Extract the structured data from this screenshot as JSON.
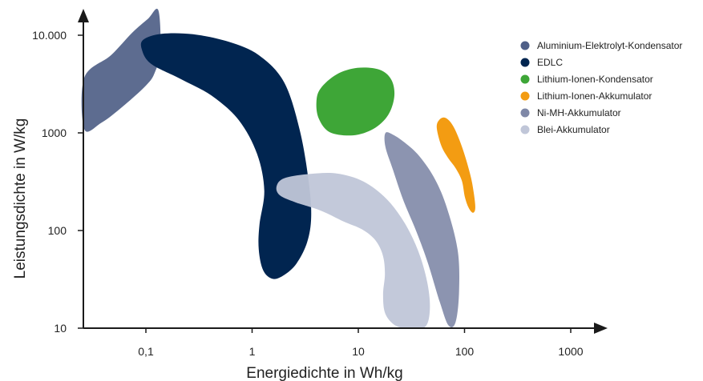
{
  "chart_data": {
    "type": "area",
    "x_scale": "log",
    "y_scale": "log",
    "xlabel": "Energiedichte in Wh/kg",
    "ylabel": "Leistungsdichte in W/kg",
    "x_ticks": [
      {
        "value": 0.1,
        "label": "0,1"
      },
      {
        "value": 1,
        "label": "1"
      },
      {
        "value": 10,
        "label": "10"
      },
      {
        "value": 100,
        "label": "100"
      },
      {
        "value": 1000,
        "label": "1000"
      }
    ],
    "y_ticks": [
      {
        "value": 10,
        "label": "10"
      },
      {
        "value": 100,
        "label": "100"
      },
      {
        "value": 1000,
        "label": "1000"
      },
      {
        "value": 10000,
        "label": "10.000"
      }
    ],
    "grid": false,
    "legend_position": "top-right",
    "series": [
      {
        "name": "Aluminium-Elektrolyt-Kondensator",
        "color": "#4f5f87",
        "opacity": 0.92,
        "region": [
          [
            0.0263,
            3677
          ],
          [
            0.047,
            6245
          ],
          [
            0.0743,
            10606
          ],
          [
            0.1046,
            14733
          ],
          [
            0.1309,
            18013
          ],
          [
            0.1368,
            6952
          ],
          [
            0.1211,
            4124
          ],
          [
            0.1003,
            3060
          ],
          [
            0.0609,
            1874
          ],
          [
            0.0382,
            1272
          ],
          [
            0.0263,
            1094
          ]
        ]
      },
      {
        "name": "EDLC",
        "color": "#012550",
        "opacity": 1,
        "region": [
          [
            0.0953,
            9046
          ],
          [
            0.1409,
            10355
          ],
          [
            0.2779,
            10223
          ],
          [
            0.6057,
            8545
          ],
          [
            1.1542,
            6245
          ],
          [
            2.0002,
            3303
          ],
          [
            2.8125,
            1061
          ],
          [
            3.413,
            316
          ],
          [
            3.6,
            138
          ],
          [
            3.3,
            76
          ],
          [
            2.6213,
            46
          ],
          [
            2.0002,
            35
          ],
          [
            1.5638,
            32
          ],
          [
            1.2726,
            39
          ],
          [
            1.1542,
            64
          ],
          [
            1.1727,
            115
          ],
          [
            1.3014,
            256
          ],
          [
            1.1159,
            606
          ],
          [
            0.7483,
            1352
          ],
          [
            0.4136,
            2413
          ],
          [
            0.2128,
            3564
          ],
          [
            0.1116,
            5104
          ],
          [
            0.0914,
            7221
          ]
        ]
      },
      {
        "name": "Lithium-Ionen-Kondensator",
        "color": "#3ea637",
        "opacity": 1,
        "region": [
          [
            4.4,
            2838
          ],
          [
            6.264,
            3973
          ],
          [
            9.7825,
            4626
          ],
          [
            15.8,
            4443
          ],
          [
            20.466,
            3500
          ],
          [
            21.807,
            2363
          ],
          [
            19.052,
            1517
          ],
          [
            13.9,
            1100
          ],
          [
            8.918,
            944
          ],
          [
            5.4,
            1016
          ],
          [
            4.255,
            1395
          ],
          [
            4.03,
            2040
          ]
        ]
      },
      {
        "name": "Lithium-Ionen-Akkumulator",
        "color": "#f39c12",
        "opacity": 1,
        "region": [
          [
            54.8,
            1118
          ],
          [
            57.5,
            1350
          ],
          [
            65.8,
            1428
          ],
          [
            78.2,
            1175
          ],
          [
            94.4,
            724
          ],
          [
            112.4,
            386
          ],
          [
            121.9,
            247
          ],
          [
            126.3,
            170
          ],
          [
            119.7,
            152
          ],
          [
            109.0,
            172
          ],
          [
            100.7,
            221
          ],
          [
            94.4,
            323
          ],
          [
            82.4,
            435
          ],
          [
            70.2,
            552
          ],
          [
            60.5,
            735
          ]
        ]
      },
      {
        "name": "Ni-MH-Akkumulator",
        "color": "#7f88a7",
        "opacity": 0.9,
        "region": [
          [
            17.977,
            995
          ],
          [
            21.163,
            960
          ],
          [
            27.19,
            799
          ],
          [
            37.063,
            587
          ],
          [
            51.124,
            356
          ],
          [
            66.82,
            183
          ],
          [
            86.009,
            64
          ],
          [
            88.9,
            24
          ],
          [
            82.384,
            11.5
          ],
          [
            70.526,
            10.7
          ],
          [
            58.45,
            18.6
          ],
          [
            45.07,
            47
          ],
          [
            35.56,
            95
          ],
          [
            26.354,
            208
          ],
          [
            21.163,
            421
          ],
          [
            17.977,
            720
          ]
        ]
      },
      {
        "name": "Blei-Akkumulator",
        "color": "#c0c6d8",
        "opacity": 0.95,
        "region": [
          [
            2.0002,
            343
          ],
          [
            3.4613,
            379
          ],
          [
            6.264,
            384
          ],
          [
            11.174,
            318
          ],
          [
            18.484,
            210
          ],
          [
            27.19,
            120
          ],
          [
            36.55,
            62
          ],
          [
            44.447,
            30
          ],
          [
            47.21,
            16
          ],
          [
            43.24,
            10.5
          ],
          [
            32.74,
            10
          ],
          [
            22.9,
            10.5
          ],
          [
            18.0,
            14
          ],
          [
            17.1,
            22
          ],
          [
            17.8,
            36
          ],
          [
            17.0,
            56
          ],
          [
            14.4,
            80
          ],
          [
            10.8,
            103
          ],
          [
            7.24,
            124
          ],
          [
            4.43,
            160
          ],
          [
            2.54,
            195
          ],
          [
            1.82,
            230
          ],
          [
            1.7,
            283
          ]
        ]
      }
    ]
  }
}
